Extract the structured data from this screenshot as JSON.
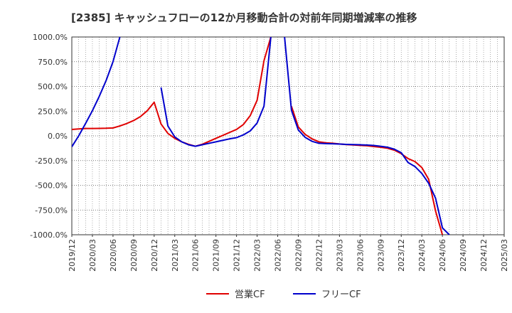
{
  "chart_data": {
    "type": "line",
    "title": "[2385]  キャッシュフローの12か月移動合計の対前年同期増減率の推移",
    "xlabel": "",
    "ylabel": "",
    "ylim": [
      -1000,
      1000
    ],
    "xlim": [
      "2019/12",
      "2025/03"
    ],
    "grid": true,
    "legend_position": "bottom-center",
    "y_ticks": [
      1000,
      750,
      500,
      250,
      0,
      -250,
      -500,
      -750,
      -1000
    ],
    "y_tick_labels": [
      "1000.0%",
      "750.0%",
      "500.0%",
      "250.0%",
      "0.0%",
      "-250.0%",
      "-500.0%",
      "-750.0%",
      "-1000.0%"
    ],
    "x_tick_labels": [
      "2019/12",
      "2020/03",
      "2020/06",
      "2020/09",
      "2020/12",
      "2021/03",
      "2021/06",
      "2021/09",
      "2021/12",
      "2022/03",
      "2022/06",
      "2022/09",
      "2022/12",
      "2023/03",
      "2023/06",
      "2023/09",
      "2023/12",
      "2024/03",
      "2024/06",
      "2024/09",
      "2024/12",
      "2025/03"
    ],
    "series": [
      {
        "name": "営業CF",
        "color": "#e00000",
        "points": [
          [
            "2019/12",
            65
          ],
          [
            "2020/01",
            70
          ],
          [
            "2020/02",
            75
          ],
          [
            "2020/03",
            75
          ],
          [
            "2020/04",
            76
          ],
          [
            "2020/05",
            77
          ],
          [
            "2020/06",
            80
          ],
          [
            "2020/07",
            100
          ],
          [
            "2020/08",
            125
          ],
          [
            "2020/09",
            155
          ],
          [
            "2020/10",
            195
          ],
          [
            "2020/11",
            255
          ],
          [
            "2020/12",
            340
          ],
          [
            "2021/01",
            120
          ],
          [
            "2021/02",
            25
          ],
          [
            "2021/03",
            -25
          ],
          [
            "2021/04",
            -60
          ],
          [
            "2021/05",
            -85
          ],
          [
            "2021/06",
            -105
          ],
          [
            "2021/07",
            -85
          ],
          [
            "2021/08",
            -55
          ],
          [
            "2021/09",
            -25
          ],
          [
            "2021/10",
            5
          ],
          [
            "2021/11",
            35
          ],
          [
            "2021/12",
            65
          ],
          [
            "2022/01",
            115
          ],
          [
            "2022/02",
            205
          ],
          [
            "2022/03",
            360
          ],
          [
            "2022/04",
            760
          ],
          [
            "2022/05",
            1000
          ]
        ],
        "segments_after_gap": [
          [
            "2022/08",
            300
          ],
          [
            "2022/09",
            90
          ],
          [
            "2022/10",
            15
          ],
          [
            "2022/11",
            -30
          ],
          [
            "2022/12",
            -60
          ],
          [
            "2023/01",
            -70
          ],
          [
            "2023/02",
            -75
          ],
          [
            "2023/03",
            -82
          ],
          [
            "2023/04",
            -88
          ],
          [
            "2023/05",
            -92
          ],
          [
            "2023/06",
            -96
          ],
          [
            "2023/07",
            -100
          ],
          [
            "2023/08",
            -108
          ],
          [
            "2023/09",
            -115
          ],
          [
            "2023/10",
            -125
          ],
          [
            "2023/11",
            -145
          ],
          [
            "2023/12",
            -180
          ],
          [
            "2024/01",
            -230
          ],
          [
            "2024/02",
            -260
          ],
          [
            "2024/03",
            -320
          ],
          [
            "2024/04",
            -440
          ],
          [
            "2024/05",
            -760
          ],
          [
            "2024/06",
            -1000
          ]
        ]
      },
      {
        "name": "フリーCF",
        "color": "#0000cc",
        "points": [
          [
            "2019/12",
            -110
          ],
          [
            "2020/01",
            0
          ],
          [
            "2020/02",
            125
          ],
          [
            "2020/03",
            255
          ],
          [
            "2020/04",
            400
          ],
          [
            "2020/05",
            560
          ],
          [
            "2020/06",
            750
          ],
          [
            "2020/07",
            1000
          ]
        ],
        "segments_after_gap": [
          [
            "2021/01",
            490
          ],
          [
            "2021/02",
            100
          ],
          [
            "2021/03",
            -10
          ],
          [
            "2021/04",
            -60
          ],
          [
            "2021/05",
            -90
          ],
          [
            "2021/06",
            -105
          ],
          [
            "2021/07",
            -90
          ],
          [
            "2021/08",
            -75
          ],
          [
            "2021/09",
            -60
          ],
          [
            "2021/10",
            -45
          ],
          [
            "2021/11",
            -30
          ],
          [
            "2021/12",
            -18
          ],
          [
            "2022/01",
            10
          ],
          [
            "2022/02",
            50
          ],
          [
            "2022/03",
            130
          ],
          [
            "2022/04",
            300
          ],
          [
            "2022/05",
            1000
          ]
        ],
        "segments_after_gap2": [
          [
            "2022/07",
            1000
          ],
          [
            "2022/08",
            260
          ],
          [
            "2022/09",
            60
          ],
          [
            "2022/10",
            -15
          ],
          [
            "2022/11",
            -55
          ],
          [
            "2022/12",
            -75
          ],
          [
            "2023/01",
            -78
          ],
          [
            "2023/02",
            -80
          ],
          [
            "2023/03",
            -83
          ],
          [
            "2023/04",
            -86
          ],
          [
            "2023/05",
            -88
          ],
          [
            "2023/06",
            -90
          ],
          [
            "2023/07",
            -93
          ],
          [
            "2023/08",
            -97
          ],
          [
            "2023/09",
            -105
          ],
          [
            "2023/10",
            -115
          ],
          [
            "2023/11",
            -135
          ],
          [
            "2023/12",
            -170
          ],
          [
            "2024/01",
            -270
          ],
          [
            "2024/02",
            -310
          ],
          [
            "2024/03",
            -380
          ],
          [
            "2024/04",
            -480
          ],
          [
            "2024/05",
            -630
          ],
          [
            "2024/06",
            -930
          ],
          [
            "2024/07",
            -1000
          ]
        ]
      }
    ]
  }
}
